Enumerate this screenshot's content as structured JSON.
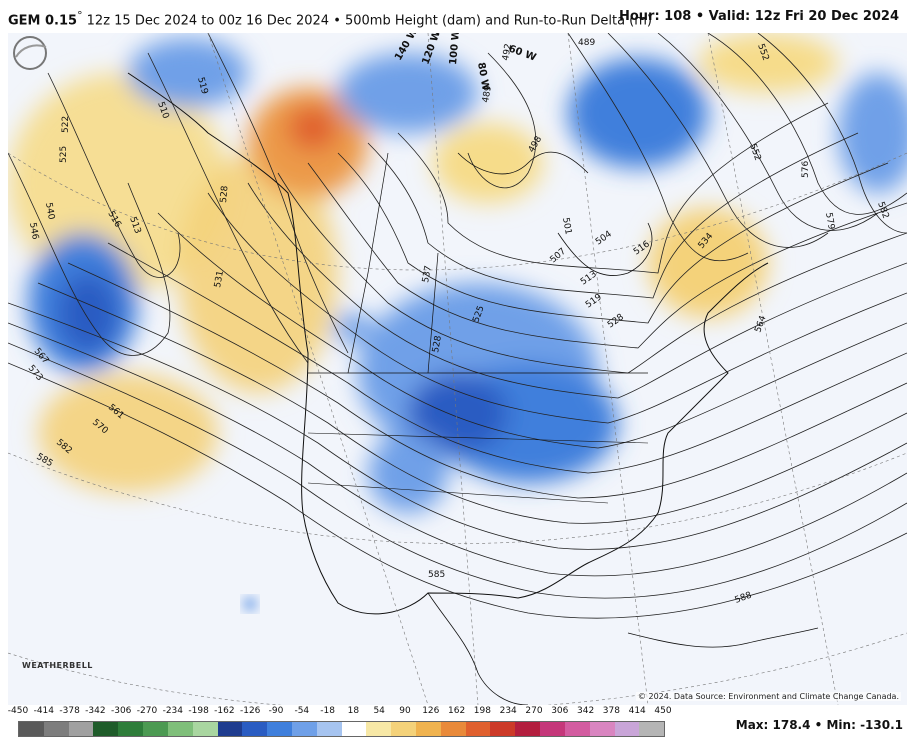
{
  "header": {
    "model": "GEM 0.15",
    "degree": "°",
    "run_info": "12z 15 Dec 2024 to 00z 16 Dec 2024 • 500mb Height (dam) and Run-to-Run Delta (m)",
    "hour_valid": "Hour: 108 • Valid: 12z Fri 20 Dec 2024"
  },
  "map": {
    "contour_labels": [
      {
        "text": "510"
      },
      {
        "text": "519"
      },
      {
        "text": "522"
      },
      {
        "text": "525"
      },
      {
        "text": "516"
      },
      {
        "text": "513"
      },
      {
        "text": "540"
      },
      {
        "text": "546"
      },
      {
        "text": "528"
      },
      {
        "text": "531"
      },
      {
        "text": "537"
      },
      {
        "text": "567"
      },
      {
        "text": "573"
      },
      {
        "text": "561"
      },
      {
        "text": "570"
      },
      {
        "text": "582"
      },
      {
        "text": "585"
      },
      {
        "text": "585"
      },
      {
        "text": "588"
      },
      {
        "text": "576"
      },
      {
        "text": "579"
      },
      {
        "text": "582"
      },
      {
        "text": "564"
      },
      {
        "text": "552"
      },
      {
        "text": "552"
      },
      {
        "text": "504"
      },
      {
        "text": "516"
      },
      {
        "text": "513"
      },
      {
        "text": "519"
      },
      {
        "text": "528"
      },
      {
        "text": "534"
      },
      {
        "text": "489"
      },
      {
        "text": "489"
      },
      {
        "text": "492"
      },
      {
        "text": "498"
      },
      {
        "text": "507"
      },
      {
        "text": "501"
      },
      {
        "text": "528"
      },
      {
        "text": "525"
      }
    ],
    "meridian_labels": [
      "140 W",
      "120 W",
      "100 W",
      "80 W",
      "60 W"
    ],
    "copyright": "© 2024. Data Source: Environment and Climate Change Canada.",
    "logo_text": "WEATHERBELL"
  },
  "colorbar": {
    "labels": [
      "-450",
      "-414",
      "-378",
      "-342",
      "-306",
      "-270",
      "-234",
      "-198",
      "-162",
      "-126",
      "-90",
      "-54",
      "-18",
      "18",
      "54",
      "90",
      "126",
      "162",
      "198",
      "234",
      "270",
      "306",
      "342",
      "378",
      "414",
      "450"
    ],
    "colors": [
      "#5a5a5a",
      "#7d7d7d",
      "#a0a0a0",
      "#1f5c2a",
      "#2e7d3a",
      "#4c9a52",
      "#7fbf7a",
      "#a9d6a0",
      "#1f3c8f",
      "#2a5cc2",
      "#3f7fdc",
      "#6fa0e8",
      "#a6c4f0",
      "#ffffff",
      "#f7e8a6",
      "#f4d27a",
      "#f0b34f",
      "#e98a3a",
      "#e0602e",
      "#cc3a28",
      "#b31e3e",
      "#c5377a",
      "#d35ca0",
      "#d985c0",
      "#c9a5d8",
      "#b5b5b5"
    ]
  },
  "stats": {
    "max_min": "Max: 178.4 • Min: -130.1"
  }
}
